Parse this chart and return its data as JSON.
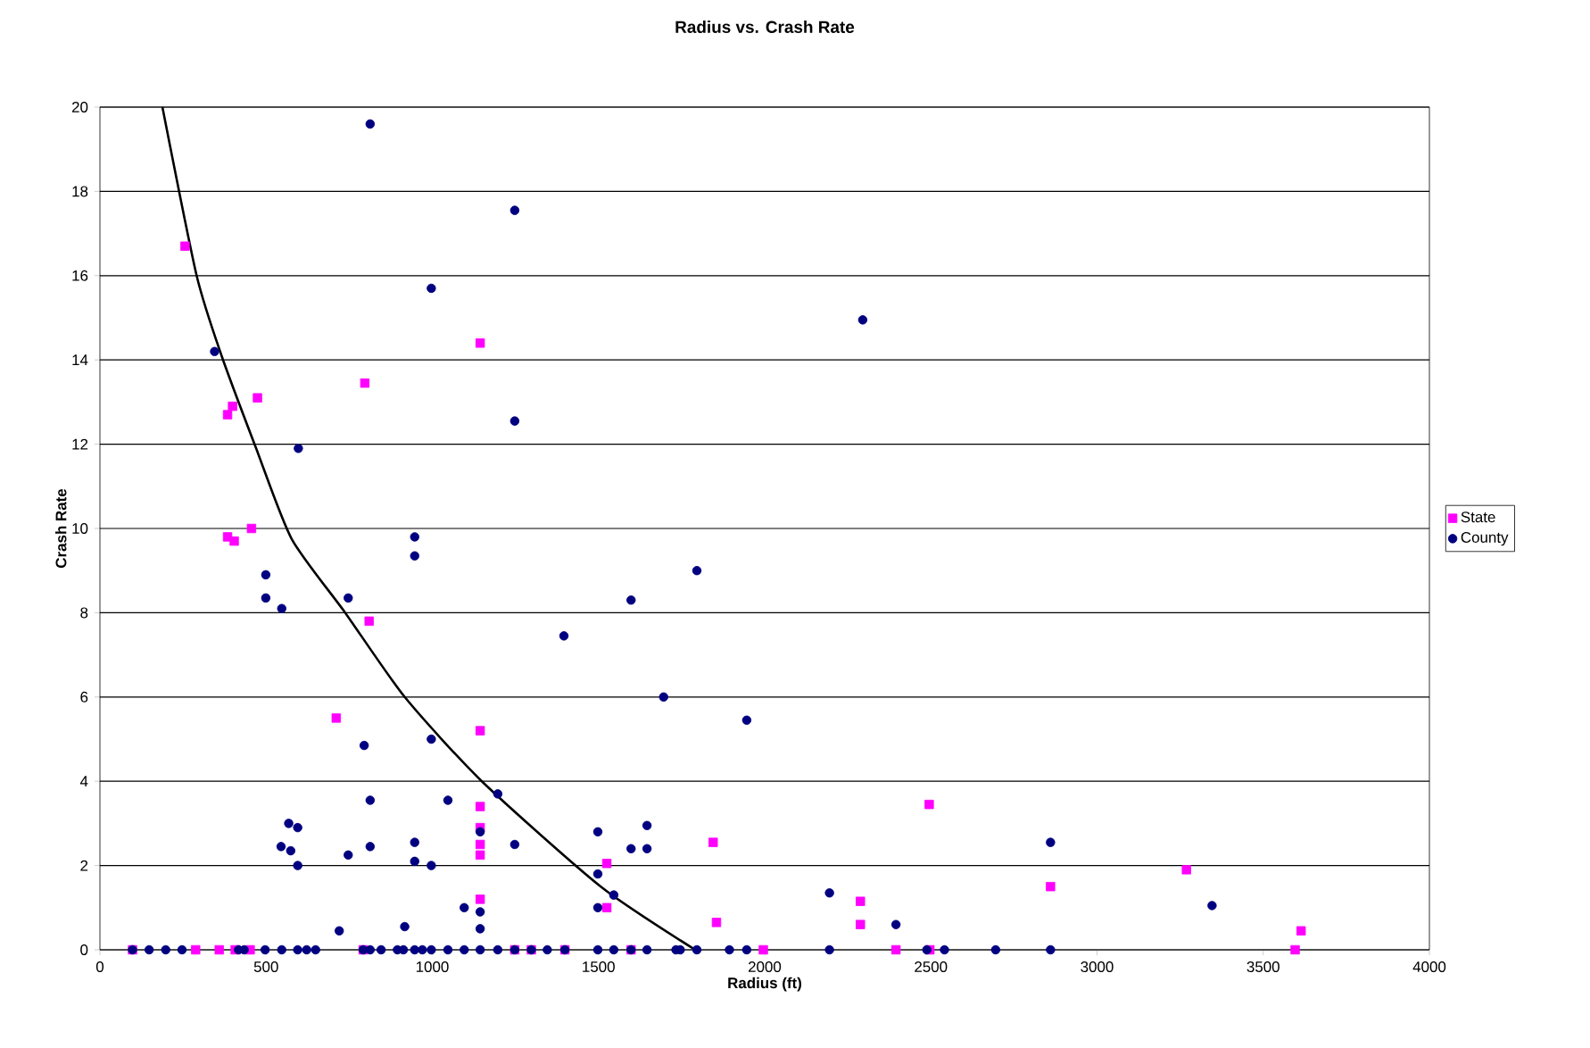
{
  "chart_data": {
    "type": "scatter",
    "title": "Radius vs. Crash Rate",
    "xlabel": "Radius (ft)",
    "ylabel": "Crash Rate",
    "xlim": [
      0,
      4000
    ],
    "ylim": [
      0,
      20
    ],
    "xticks": [
      0,
      500,
      1000,
      1500,
      2000,
      2500,
      3000,
      3500,
      4000
    ],
    "yticks": [
      0,
      2,
      4,
      6,
      8,
      10,
      12,
      14,
      16,
      18,
      20
    ],
    "grid": "y",
    "legend": "right",
    "series": [
      {
        "name": "State",
        "color": "#ff00ff",
        "marker": "square",
        "x": [
          256,
          384,
          399,
          474,
          797,
          1144,
          384,
          404,
          456,
          810,
          711,
          1144,
          1144,
          1144,
          1144,
          1144,
          1144,
          1525,
          1525,
          1845,
          1855,
          2288,
          2288,
          2495,
          2860,
          3269,
          3614,
          3596,
          98,
          288,
          359,
          407,
          452,
          792,
          1248,
          1298,
          1399,
          1598,
          1996,
          2395,
          2497
        ],
        "values": [
          16.7,
          12.7,
          12.9,
          13.1,
          13.45,
          14.4,
          9.8,
          9.7,
          10.0,
          7.8,
          5.5,
          5.2,
          3.4,
          2.9,
          2.5,
          2.25,
          1.2,
          2.05,
          1.0,
          2.55,
          0.65,
          1.15,
          0.6,
          3.45,
          1.5,
          1.9,
          0.45,
          0,
          0,
          0,
          0,
          0,
          0,
          0,
          0,
          0,
          0,
          0,
          0,
          0,
          0
        ]
      },
      {
        "name": "County",
        "color": "#000080",
        "marker": "circle",
        "x": [
          345,
          597,
          813,
          997,
          1248,
          1248,
          947,
          2295,
          499,
          499,
          547,
          747,
          947,
          1396,
          795,
          997,
          813,
          1047,
          1197,
          568,
          595,
          545,
          574,
          595,
          747,
          813,
          947,
          947,
          997,
          1144,
          1248,
          1498,
          1498,
          1498,
          720,
          917,
          1096,
          1144,
          1144,
          1598,
          1796,
          1696,
          1946,
          1646,
          1598,
          1646,
          1546,
          2195,
          2395,
          2860,
          3346,
          98,
          148,
          198,
          247,
          417,
          434,
          497,
          547,
          595,
          622,
          649,
          792,
          813,
          846,
          895,
          913,
          947,
          970,
          997,
          1047,
          1096,
          1144,
          1197,
          1248,
          1298,
          1346,
          1399,
          1498,
          1546,
          1598,
          1646,
          1733,
          1746,
          1796,
          1894,
          1946,
          2195,
          2488,
          2541,
          2695,
          2860
        ],
        "values": [
          14.2,
          11.9,
          19.6,
          15.7,
          17.55,
          12.55,
          9.8,
          14.95,
          8.9,
          8.35,
          8.1,
          8.35,
          9.35,
          7.45,
          4.85,
          5.0,
          3.55,
          3.55,
          3.7,
          3.0,
          2.9,
          2.45,
          2.35,
          2.0,
          2.25,
          2.45,
          2.55,
          2.1,
          2.0,
          2.8,
          2.5,
          2.8,
          1.8,
          1.0,
          0.45,
          0.55,
          1.0,
          0.9,
          0.5,
          8.3,
          9.0,
          6.0,
          5.45,
          2.95,
          2.4,
          2.4,
          1.3,
          1.35,
          0.6,
          2.55,
          1.05,
          0,
          0,
          0,
          0,
          0,
          0,
          0,
          0,
          0,
          0,
          0,
          0,
          0,
          0,
          0,
          0,
          0,
          0,
          0,
          0,
          0,
          0,
          0,
          0,
          0,
          0,
          0,
          0,
          0,
          0,
          0,
          0,
          0,
          0,
          0,
          0,
          0,
          0,
          0,
          0,
          0
        ]
      },
      {
        "type": "line",
        "color": "#000000",
        "marker": "none",
        "line_style": "solid",
        "x": [
          188,
          291,
          366,
          470,
          577,
          738,
          917,
          1149,
          1507,
          1791
        ],
        "values": [
          20,
          16.0,
          14.1,
          11.9,
          9.75,
          8.0,
          6.0,
          4.0,
          1.5,
          0
        ]
      }
    ]
  }
}
